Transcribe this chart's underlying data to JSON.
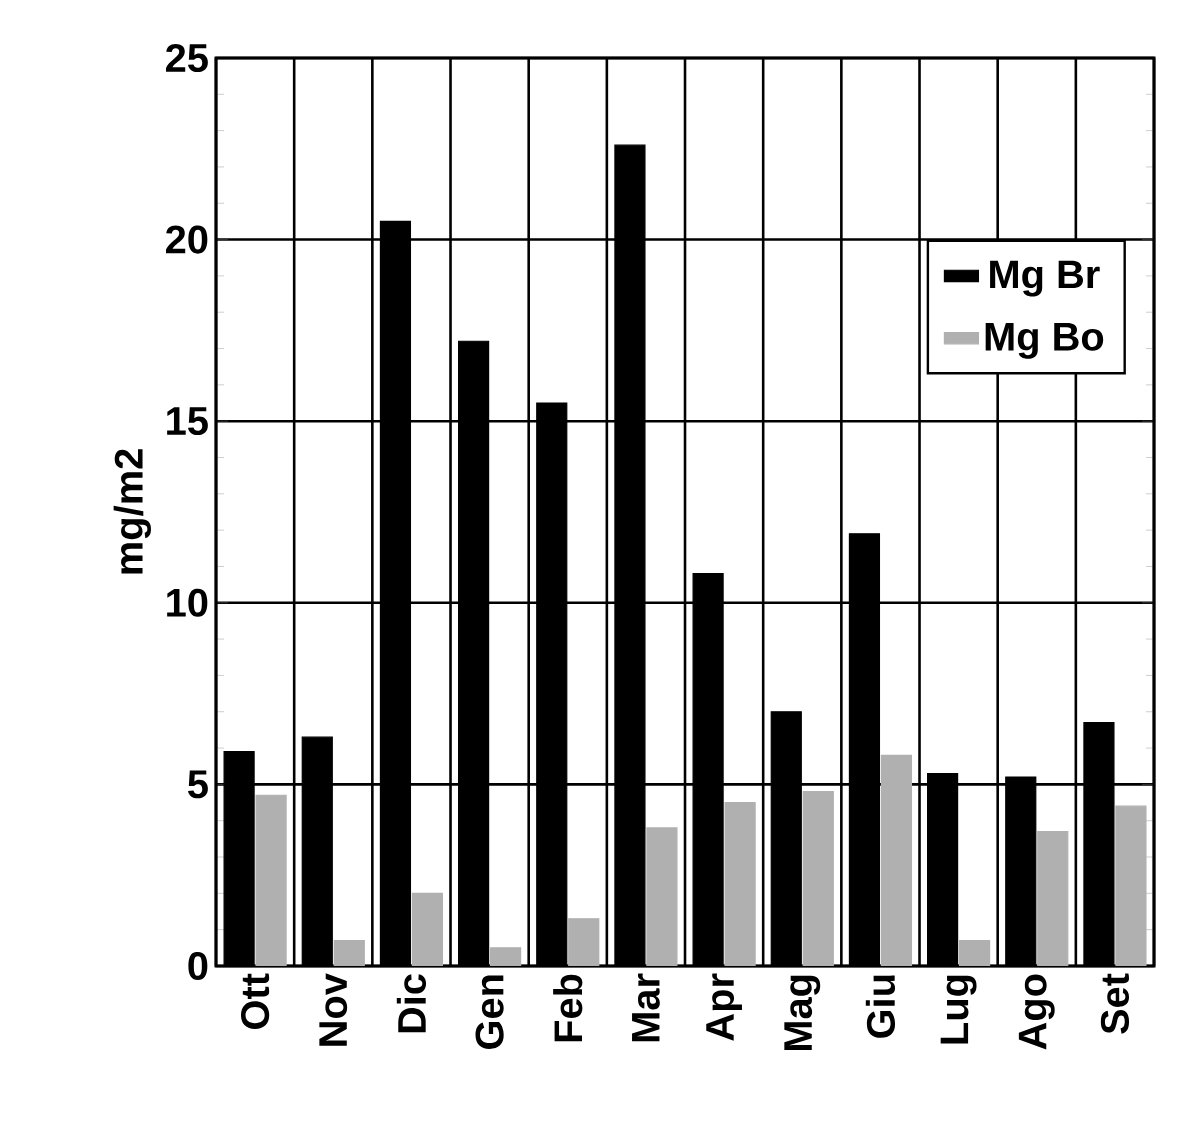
{
  "chart_data": {
    "type": "bar",
    "ylabel": "mg/m2",
    "categories": [
      "Ott",
      "Nov",
      "Dic",
      "Gen",
      "Feb",
      "Mar",
      "Apr",
      "Mag",
      "Giu",
      "Lug",
      "Ago",
      "Set"
    ],
    "series": [
      {
        "name": "Mg  Br",
        "color": "#000000",
        "values": [
          5.9,
          6.3,
          20.5,
          17.2,
          15.5,
          22.6,
          10.8,
          7.0,
          11.9,
          5.3,
          5.2,
          6.7
        ]
      },
      {
        "name": "Mg  Bo",
        "color": "#b0b0b0",
        "values": [
          4.7,
          0.7,
          2.0,
          0.5,
          1.3,
          3.8,
          4.5,
          4.8,
          5.8,
          0.7,
          3.7,
          4.4
        ]
      }
    ],
    "ylim": [
      0,
      25
    ],
    "yticks": [
      0,
      5,
      10,
      15,
      20,
      25
    ],
    "grid": true,
    "legend": "top right"
  }
}
